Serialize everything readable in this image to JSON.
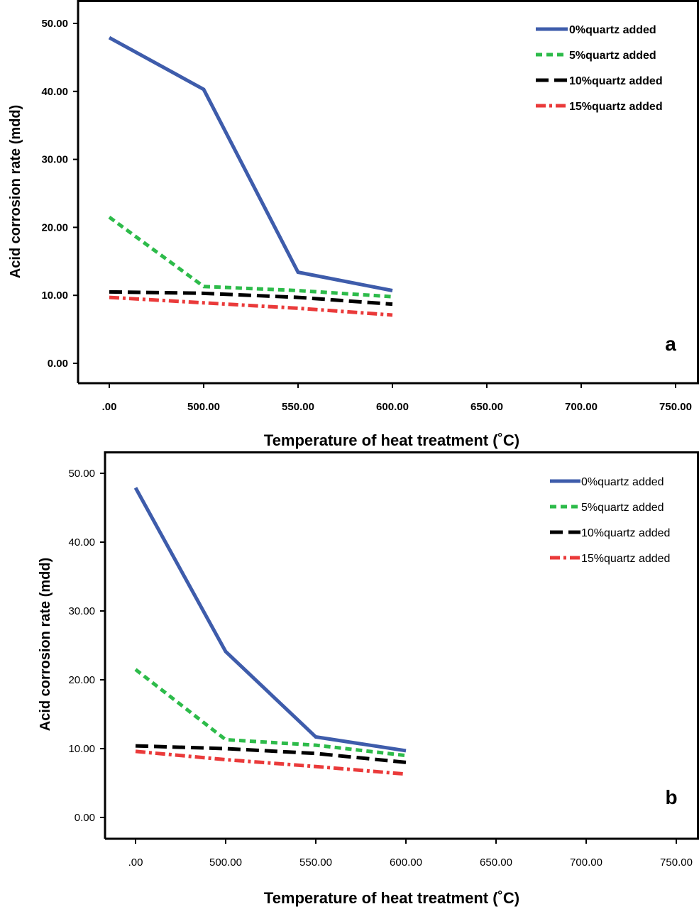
{
  "chart_data": [
    {
      "type": "line",
      "panel_label": "a",
      "xlabel": "Temperature of heat treatment (˚C)",
      "ylabel": "Acid corrosion rate (mdd)",
      "x_tick_labels": [
        ".00",
        "500.00",
        "550.00",
        "600.00",
        "650.00",
        "700.00",
        "750.00"
      ],
      "y_tick_labels": [
        "0.00",
        "10.00",
        "20.00",
        "30.00",
        "40.00",
        "50.00"
      ],
      "y_ticks": [
        0,
        10,
        20,
        30,
        40,
        50
      ],
      "ylim": [
        -2.5,
        52.5
      ],
      "categories": [
        ".00",
        "500.00",
        "550.00",
        "600.00"
      ],
      "legend_position": "top-right",
      "series": [
        {
          "name": "0%quartz added",
          "values": [
            47.9,
            40.3,
            13.4,
            10.7
          ],
          "color": "#3e5cab",
          "dash": "solid"
        },
        {
          "name": "5%quartz added",
          "values": [
            21.5,
            11.3,
            10.7,
            9.8
          ],
          "color": "#2dbb4a",
          "dash": "dotted"
        },
        {
          "name": "10%quartz added",
          "values": [
            10.5,
            10.3,
            9.7,
            8.7
          ],
          "color": "#000000",
          "dash": "dashed"
        },
        {
          "name": "15%quartz added",
          "values": [
            9.7,
            8.9,
            8.1,
            7.1
          ],
          "color": "#ea3a3a",
          "dash": "dash-dot"
        }
      ]
    },
    {
      "type": "line",
      "panel_label": "b",
      "xlabel": "Temperature of heat treatment (˚C)",
      "ylabel": "Acid corrosion rate (mdd)",
      "x_tick_labels": [
        ".00",
        "500.00",
        "550.00",
        "600.00",
        "650.00",
        "700.00",
        "750.00"
      ],
      "y_tick_labels": [
        "0.00",
        "10.00",
        "20.00",
        "30.00",
        "40.00",
        "50.00"
      ],
      "y_ticks": [
        0,
        10,
        20,
        30,
        40,
        50
      ],
      "ylim": [
        -2.5,
        52.5
      ],
      "categories": [
        ".00",
        "500.00",
        "550.00",
        "600.00"
      ],
      "legend_position": "top-right",
      "series": [
        {
          "name": "0%quartz added",
          "values": [
            47.9,
            24.1,
            11.7,
            9.7
          ],
          "color": "#3e5cab",
          "dash": "solid"
        },
        {
          "name": "5%quartz added",
          "values": [
            21.5,
            11.3,
            10.5,
            9.0
          ],
          "color": "#2dbb4a",
          "dash": "dotted"
        },
        {
          "name": "10%quartz added",
          "values": [
            10.4,
            10.0,
            9.3,
            8.0
          ],
          "color": "#000000",
          "dash": "dashed"
        },
        {
          "name": "15%quartz added",
          "values": [
            9.6,
            8.4,
            7.4,
            6.3
          ],
          "color": "#ea3a3a",
          "dash": "dash-dot"
        }
      ]
    }
  ]
}
